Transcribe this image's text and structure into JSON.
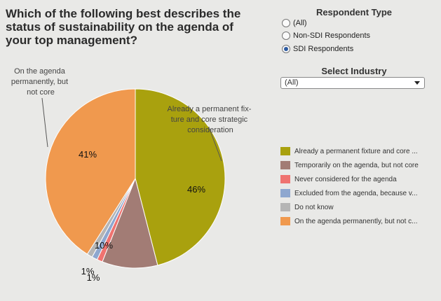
{
  "title": "Which of the following best describes the status of sustainability on the agenda of your top management?",
  "respondent_filter": {
    "heading": "Respondent Type",
    "options": [
      {
        "label": "(All)",
        "checked": false
      },
      {
        "label": "Non-SDI Respondents",
        "checked": false
      },
      {
        "label": "SDI Respondents",
        "checked": true
      }
    ]
  },
  "industry_filter": {
    "heading": "Select Industry",
    "selected": "(All)"
  },
  "legend": [
    "Already a permanent fixture and core ...",
    "Temporarily on the agenda, but not core",
    "Never considered for the agenda",
    "Excluded from the agenda, because v...",
    "Do not know",
    "On the agenda permanently, but not c..."
  ],
  "callouts": {
    "top": [
      "On the agenda",
      "permanently, but",
      "not core"
    ],
    "right": [
      "Already a permanent fix-",
      "ture and core strategic",
      "consideration"
    ]
  },
  "chart_data": {
    "type": "pie",
    "slices": [
      {
        "value": 46,
        "label": "46%",
        "color": "#a9a10e"
      },
      {
        "value": 10,
        "label": "10%",
        "color": "#a27c75"
      },
      {
        "value": 1,
        "label": "1%",
        "color": "#ef7370"
      },
      {
        "value": 1,
        "label": "1%",
        "color": "#8ea7cf"
      },
      {
        "value": 1,
        "label": "",
        "color": "#b5b5b5"
      },
      {
        "value": 41,
        "label": "41%",
        "color": "#f0994e"
      }
    ]
  }
}
